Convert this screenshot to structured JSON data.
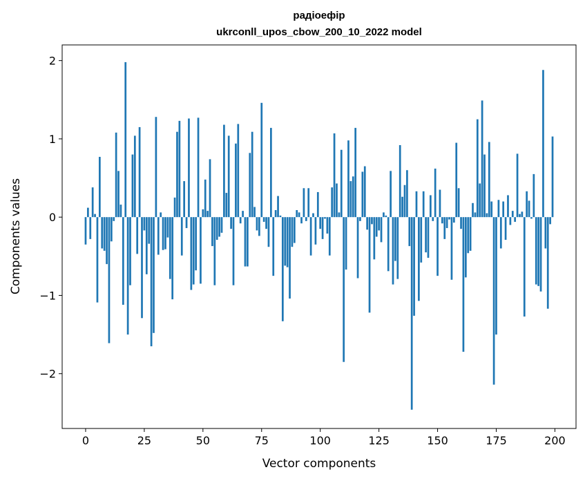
{
  "chart_data": {
    "type": "bar",
    "title_line1": "радіоефір",
    "title_line2": "ukrconll_upos_cbow_200_10_2022 model",
    "xlabel": "Vector components",
    "ylabel": "Components values",
    "xlim": [
      -10,
      209
    ],
    "ylim": [
      -2.7,
      2.2
    ],
    "xticks": [
      0,
      25,
      50,
      75,
      100,
      125,
      150,
      175,
      200
    ],
    "yticks": [
      -2,
      -1,
      0,
      1,
      2
    ],
    "bar_color": "#1f77b4",
    "grid": false,
    "x": [
      0,
      1,
      2,
      3,
      4,
      5,
      6,
      7,
      8,
      9,
      10,
      11,
      12,
      13,
      14,
      15,
      16,
      17,
      18,
      19,
      20,
      21,
      22,
      23,
      24,
      25,
      26,
      27,
      28,
      29,
      30,
      31,
      32,
      33,
      34,
      35,
      36,
      37,
      38,
      39,
      40,
      41,
      42,
      43,
      44,
      45,
      46,
      47,
      48,
      49,
      50,
      51,
      52,
      53,
      54,
      55,
      56,
      57,
      58,
      59,
      60,
      61,
      62,
      63,
      64,
      65,
      66,
      67,
      68,
      69,
      70,
      71,
      72,
      73,
      74,
      75,
      76,
      77,
      78,
      79,
      80,
      81,
      82,
      83,
      84,
      85,
      86,
      87,
      88,
      89,
      90,
      91,
      92,
      93,
      94,
      95,
      96,
      97,
      98,
      99,
      100,
      101,
      102,
      103,
      104,
      105,
      106,
      107,
      108,
      109,
      110,
      111,
      112,
      113,
      114,
      115,
      116,
      117,
      118,
      119,
      120,
      121,
      122,
      123,
      124,
      125,
      126,
      127,
      128,
      129,
      130,
      131,
      132,
      133,
      134,
      135,
      136,
      137,
      138,
      139,
      140,
      141,
      142,
      143,
      144,
      145,
      146,
      147,
      148,
      149,
      150,
      151,
      152,
      153,
      154,
      155,
      156,
      157,
      158,
      159,
      160,
      161,
      162,
      163,
      164,
      165,
      166,
      167,
      168,
      169,
      170,
      171,
      172,
      173,
      174,
      175,
      176,
      177,
      178,
      179,
      180,
      181,
      182,
      183,
      184,
      185,
      186,
      187,
      188,
      189,
      190,
      191,
      192,
      193,
      194,
      195,
      196,
      197,
      198,
      199
    ],
    "values": [
      -0.35,
      0.12,
      -0.28,
      0.38,
      0.04,
      -1.09,
      0.77,
      -0.4,
      -0.43,
      -0.6,
      -1.61,
      -0.31,
      -0.05,
      1.08,
      0.59,
      0.16,
      -1.12,
      1.98,
      -1.5,
      -0.87,
      0.8,
      1.04,
      -0.47,
      1.15,
      -1.29,
      -0.17,
      -0.73,
      -0.34,
      -1.65,
      -1.48,
      1.28,
      -0.48,
      0.06,
      -0.42,
      -0.41,
      -0.26,
      -0.79,
      -1.05,
      0.25,
      1.09,
      1.23,
      -0.49,
      0.46,
      -0.14,
      1.26,
      -0.93,
      -0.86,
      -0.68,
      1.27,
      -0.85,
      0.1,
      0.48,
      0.08,
      0.74,
      -0.37,
      -0.87,
      -0.29,
      -0.25,
      -0.2,
      1.18,
      0.31,
      1.04,
      -0.15,
      -0.87,
      0.94,
      1.19,
      -0.08,
      0.08,
      -0.63,
      -0.63,
      0.82,
      1.09,
      0.13,
      -0.17,
      -0.24,
      1.46,
      -0.06,
      -0.15,
      -0.38,
      1.14,
      -0.75,
      0.09,
      0.27,
      0.02,
      -1.33,
      -0.62,
      -0.64,
      -1.04,
      -0.38,
      -0.33,
      0.09,
      0.06,
      -0.08,
      0.37,
      -0.05,
      0.37,
      -0.49,
      0.05,
      -0.35,
      0.32,
      -0.15,
      -0.28,
      -0.02,
      -0.21,
      -0.49,
      0.38,
      1.07,
      0.43,
      0.06,
      0.86,
      -1.85,
      -0.67,
      0.98,
      0.46,
      0.52,
      1.14,
      -0.78,
      -0.05,
      0.58,
      0.65,
      -0.16,
      -1.22,
      -0.09,
      -0.54,
      -0.25,
      -0.17,
      -0.32,
      0.06,
      0.02,
      -0.69,
      0.59,
      -0.86,
      -0.56,
      -0.79,
      0.92,
      0.26,
      0.41,
      0.6,
      -0.37,
      -2.46,
      -1.26,
      0.33,
      -1.07,
      -0.58,
      0.33,
      -0.45,
      -0.52,
      0.28,
      -0.05,
      0.62,
      -0.75,
      0.35,
      -0.08,
      -0.28,
      -0.14,
      -0.03,
      -0.8,
      -0.07,
      0.95,
      0.37,
      -0.15,
      -1.72,
      -0.77,
      -0.46,
      -0.43,
      0.18,
      0.06,
      1.25,
      0.43,
      1.49,
      0.8,
      0.05,
      0.96,
      0.2,
      -2.14,
      -1.5,
      0.22,
      -0.4,
      0.2,
      -0.29,
      0.28,
      -0.1,
      0.08,
      -0.06,
      0.81,
      0.04,
      0.07,
      -1.27,
      0.33,
      0.21,
      -0.02,
      0.55,
      -0.86,
      -0.88,
      -0.95,
      1.88,
      -0.4,
      -1.17,
      -0.09,
      1.03
    ]
  }
}
